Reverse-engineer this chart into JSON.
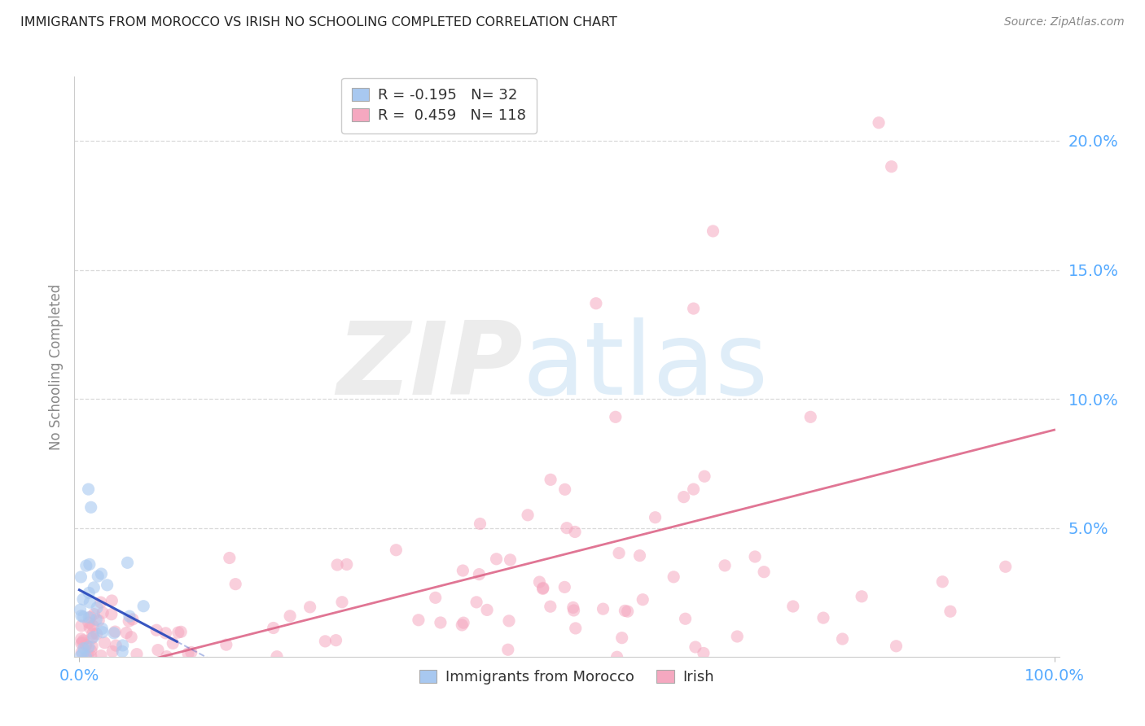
{
  "title": "IMMIGRANTS FROM MOROCCO VS IRISH NO SCHOOLING COMPLETED CORRELATION CHART",
  "source": "Source: ZipAtlas.com",
  "ylabel": "No Schooling Completed",
  "legend_label1": "Immigrants from Morocco",
  "legend_label2": "Irish",
  "blue_color": "#a8c8f0",
  "pink_color": "#f5a8c0",
  "blue_line_color": "#2244bb",
  "pink_line_color": "#dd6688",
  "background_color": "#ffffff",
  "grid_color": "#d0d0d0",
  "blue_R": -0.195,
  "blue_N": 32,
  "pink_R": 0.459,
  "pink_N": 118,
  "xlim": [
    -0.005,
    1.005
  ],
  "ylim": [
    0.0,
    0.225
  ],
  "title_color": "#222222",
  "source_color": "#888888",
  "axis_label_color": "#55aaff",
  "ylabel_color": "#888888",
  "wm_zip_color": "#e0e0e0",
  "wm_atlas_color": "#b8d8f0"
}
